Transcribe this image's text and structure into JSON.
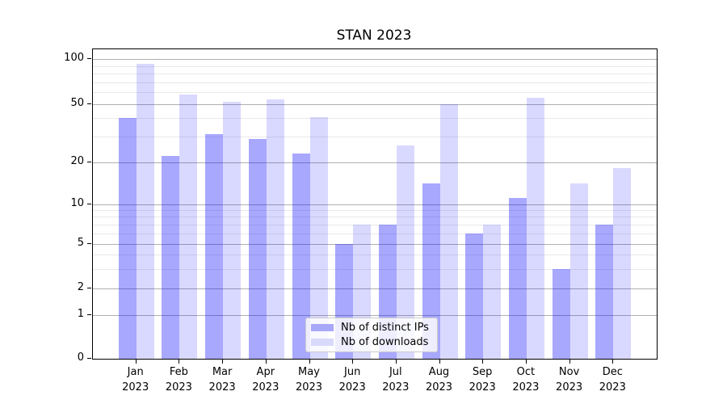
{
  "chart_data": {
    "type": "bar",
    "title": "STAN 2023",
    "categories": [
      "Jan",
      "Feb",
      "Mar",
      "Apr",
      "May",
      "Jun",
      "Jul",
      "Aug",
      "Sep",
      "Oct",
      "Nov",
      "Dec"
    ],
    "x_tick_second_line": "2023",
    "series": [
      {
        "name": "Nb of distinct IPs",
        "swatch_color": "#a8a8fa",
        "fill_color": "rgba(0,0,255,0.34)",
        "values": [
          40,
          22,
          31,
          29,
          23,
          5,
          7,
          14,
          6,
          11,
          3,
          7
        ]
      },
      {
        "name": "Nb of downloads",
        "swatch_color": "#d9d9fa",
        "fill_color": "rgba(0,0,255,0.15)",
        "values": [
          93,
          58,
          52,
          54,
          41,
          7,
          26,
          50,
          7,
          55,
          14,
          18
        ]
      }
    ],
    "y_axis": {
      "scale": "symlog",
      "major_ticks": [
        0,
        1,
        2,
        5,
        10,
        20,
        50,
        100
      ],
      "minor_ticks": [
        3,
        4,
        6,
        7,
        8,
        9,
        30,
        40,
        60,
        70,
        80,
        90
      ],
      "ylim": [
        0,
        110
      ]
    },
    "legend_position": "lower center",
    "grid": "on",
    "colors": {
      "major_grid": "#b0b0b0",
      "minor_grid": "#e9e9e9",
      "axis": "#000000",
      "legend_border": "#cccccc"
    }
  }
}
